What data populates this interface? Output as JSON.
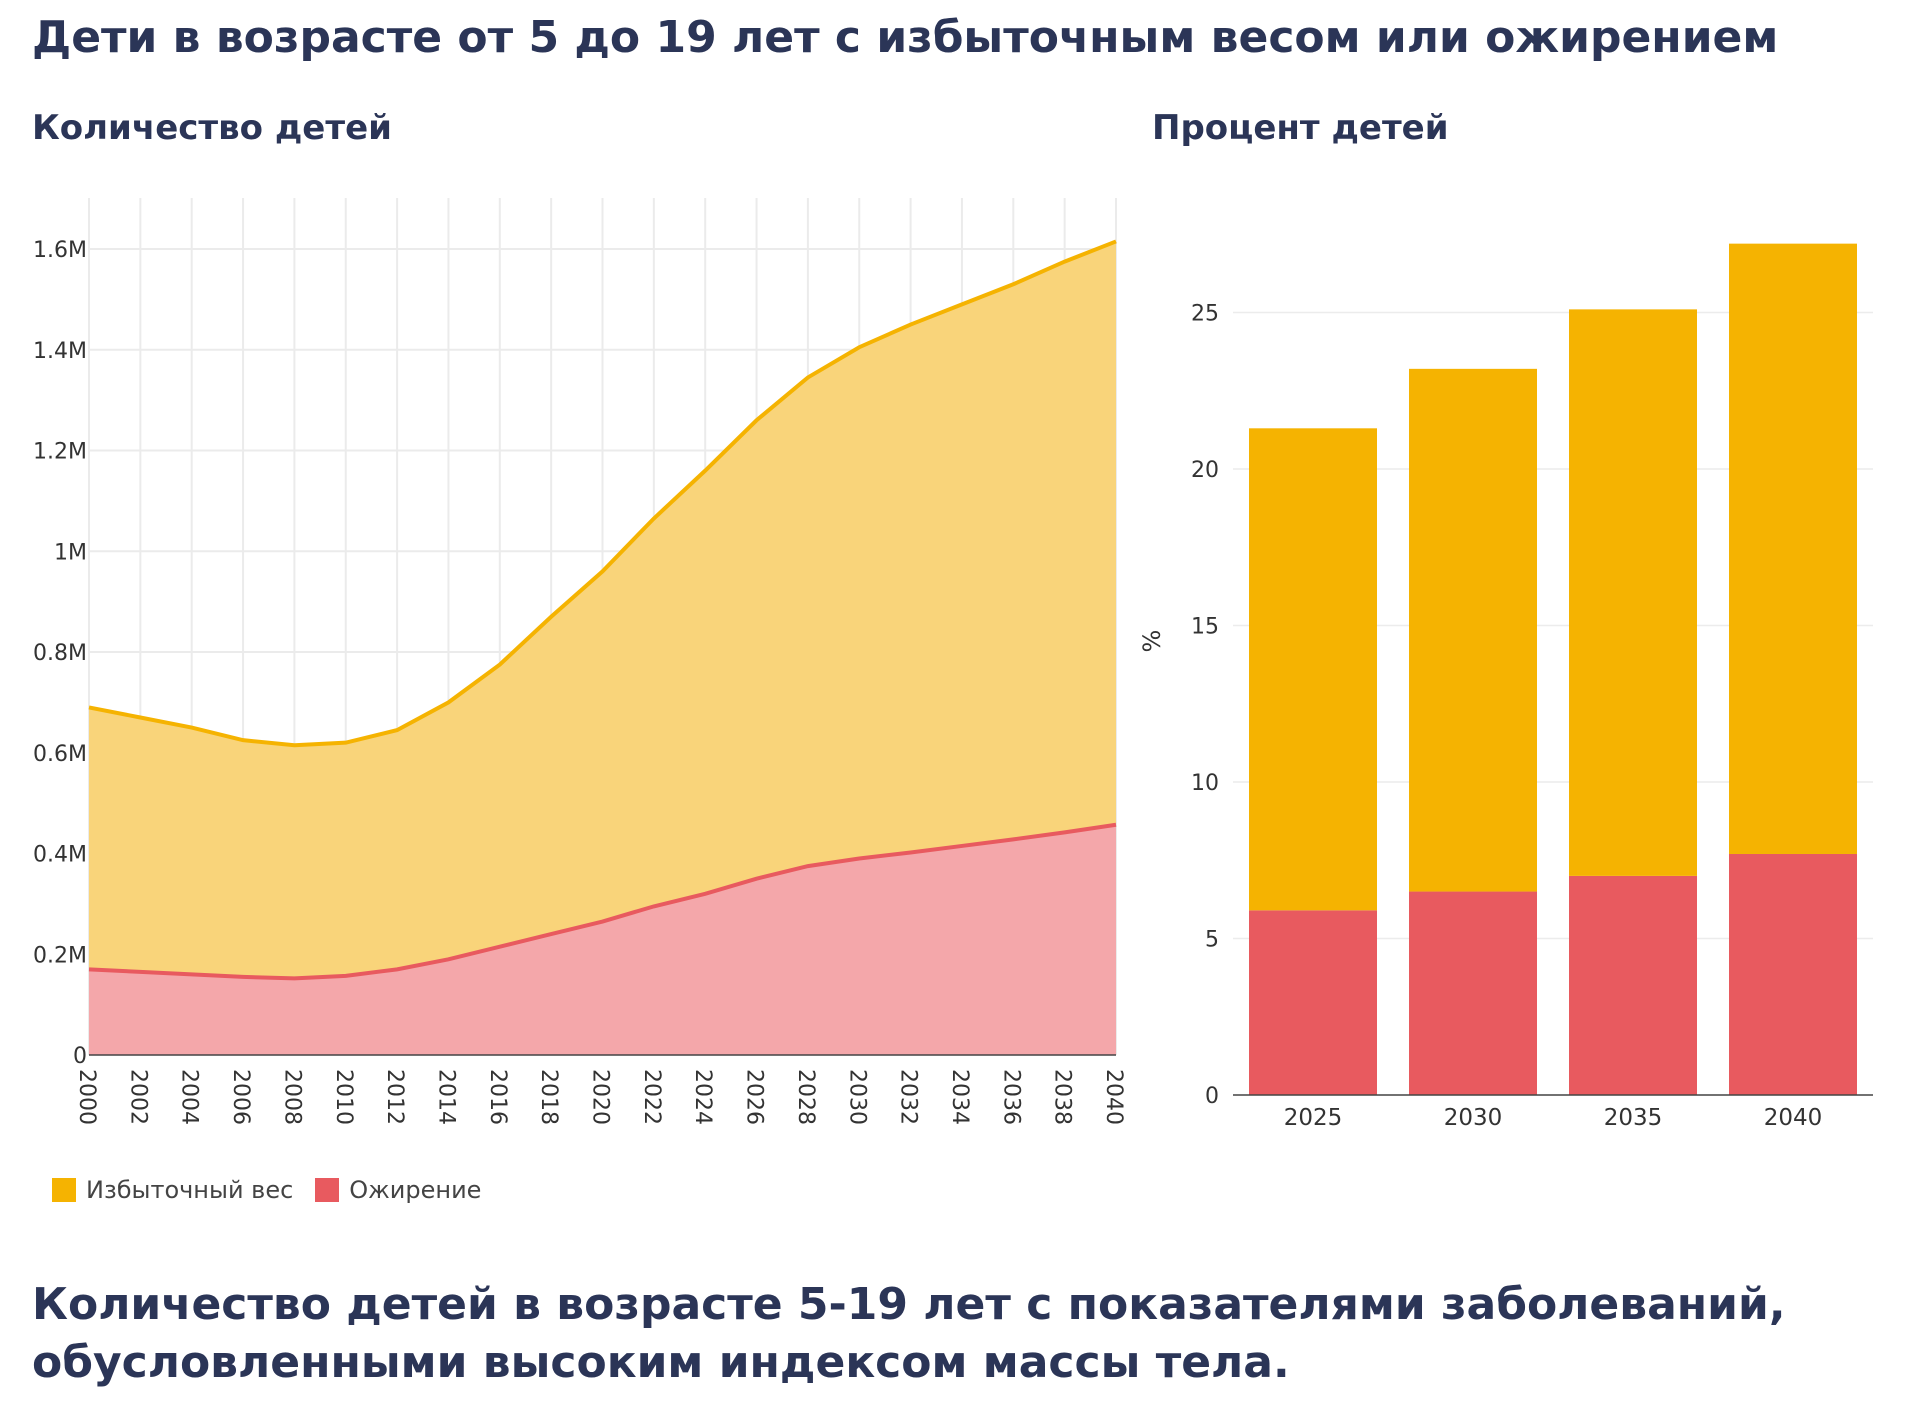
{
  "title": "Дети в возрасте от 5 до 19 лет с избыточным весом или ожирением",
  "left_subtitle": "Количество детей",
  "right_subtitle": "Процент детей",
  "legend": [
    {
      "label": "Избыточный вес",
      "color": "#f5b301"
    },
    {
      "label": "Ожирение",
      "color": "#e85a5f"
    }
  ],
  "bottom_heading": "Количество детей в возрасте 5-19 лет с показателями заболеваний, обусловленными высоким индексом массы тела.",
  "chart_data": [
    {
      "type": "area",
      "stacked": true,
      "x": [
        2000,
        2002,
        2004,
        2006,
        2008,
        2010,
        2012,
        2014,
        2016,
        2018,
        2020,
        2022,
        2024,
        2026,
        2028,
        2030,
        2032,
        2034,
        2036,
        2038,
        2040
      ],
      "xticks": [
        "2000",
        "2002",
        "2004",
        "2006",
        "2008",
        "2010",
        "2012",
        "2014",
        "2016",
        "2018",
        "2020",
        "2022",
        "2024",
        "2026",
        "2028",
        "2030",
        "2032",
        "2034",
        "2036",
        "2038",
        "2040"
      ],
      "yticks": [
        "0",
        "0.2M",
        "0.4M",
        "0.6M",
        "0.8M",
        "1M",
        "1.2M",
        "1.4M",
        "1.6M"
      ],
      "ylim": [
        0,
        1700000
      ],
      "grid": true,
      "series": [
        {
          "name": "Ожирение",
          "color": "#e85a5f",
          "fill": "#f4a7aa",
          "values": [
            170000,
            165000,
            160000,
            155000,
            152000,
            157000,
            170000,
            190000,
            215000,
            240000,
            265000,
            295000,
            320000,
            350000,
            375000,
            390000,
            402000,
            415000,
            428000,
            442000,
            457000
          ]
        },
        {
          "name": "Избыточный вес",
          "color": "#f5b301",
          "fill": "#f9d47a",
          "stacked_total": [
            690000,
            670000,
            650000,
            625000,
            615000,
            620000,
            645000,
            700000,
            775000,
            870000,
            960000,
            1065000,
            1160000,
            1260000,
            1345000,
            1405000,
            1450000,
            1490000,
            1530000,
            1575000,
            1615000
          ]
        }
      ]
    },
    {
      "type": "bar",
      "stacked": true,
      "categories": [
        "2025",
        "2030",
        "2035",
        "2040"
      ],
      "ylabel": "%",
      "yticks": [
        "0",
        "5",
        "10",
        "15",
        "20",
        "25"
      ],
      "ylim": [
        0,
        28
      ],
      "grid": true,
      "series": [
        {
          "name": "Ожирение",
          "color": "#e85a5f",
          "values": [
            5.9,
            6.5,
            7.0,
            7.7
          ]
        },
        {
          "name": "Избыточный вес",
          "color": "#f5b301",
          "values": [
            15.4,
            16.7,
            18.1,
            19.5
          ]
        }
      ]
    }
  ]
}
